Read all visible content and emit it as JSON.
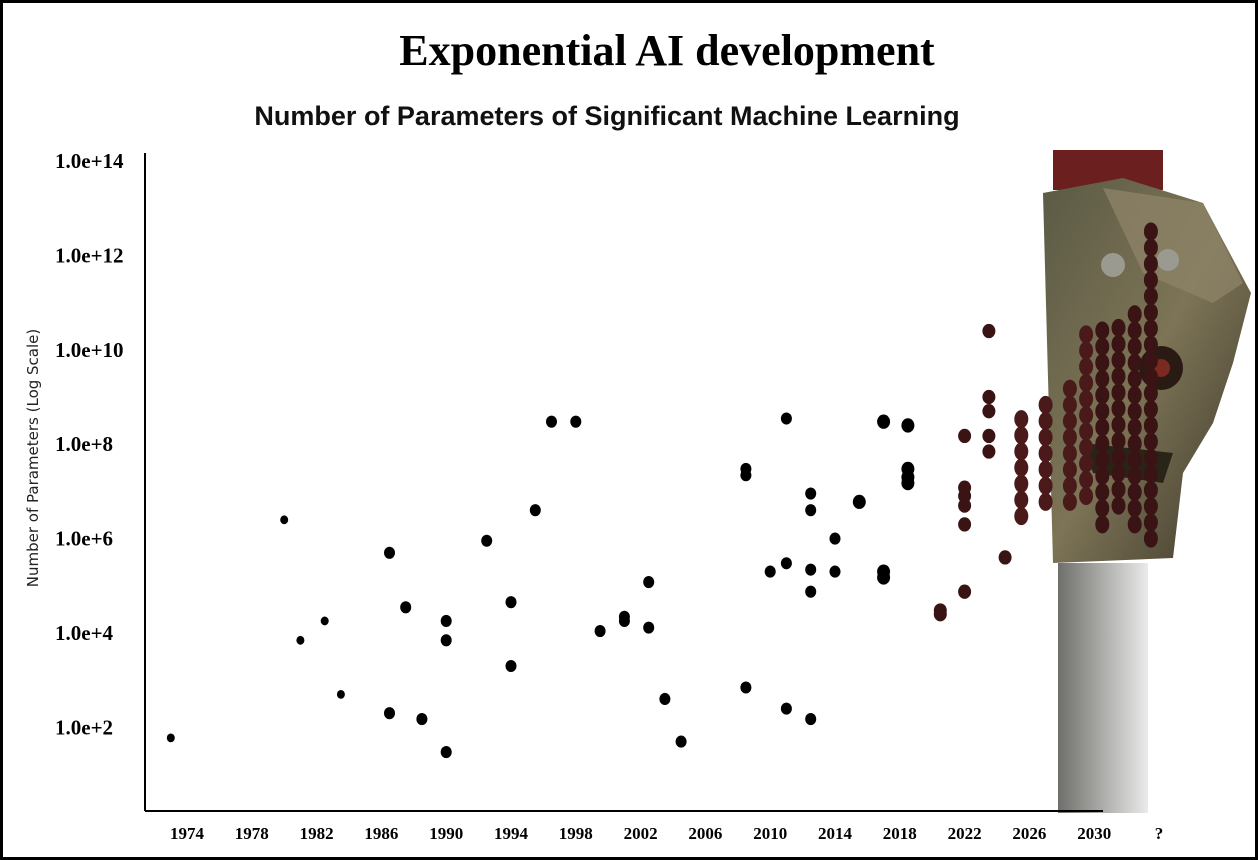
{
  "title": "Exponential AI development",
  "chart_data": {
    "type": "scatter",
    "title": "Number of Parameters of Significant Machine Learning",
    "xlabel": "",
    "ylabel": "Number of Parameters (Log Scale)",
    "y_scale": "log",
    "xlim": [
      1972,
      2034
    ],
    "ylim": [
      10,
      100000000000000.0
    ],
    "x_ticks": [
      "1974",
      "1978",
      "1982",
      "1986",
      "1990",
      "1994",
      "1998",
      "2002",
      "2006",
      "2010",
      "2014",
      "2018",
      "2022",
      "2026",
      "2030",
      "?"
    ],
    "y_ticks": [
      "1.0e+14",
      "1.0e+12",
      "1.0e+10",
      "1.0e+8",
      "1.0e+6",
      "1.0e+4",
      "1.0e+2"
    ],
    "grid": false,
    "legend": "none",
    "marker_color": "#000000",
    "accent_color": "#3a1414",
    "points": [
      {
        "x": 1973.0,
        "y": 60
      },
      {
        "x": 1980.0,
        "y": 2500000.0
      },
      {
        "x": 1981.0,
        "y": 7000
      },
      {
        "x": 1982.5,
        "y": 18000
      },
      {
        "x": 1983.5,
        "y": 500
      },
      {
        "x": 1986.5,
        "y": 500000.0
      },
      {
        "x": 1986.5,
        "y": 200
      },
      {
        "x": 1987.5,
        "y": 35000
      },
      {
        "x": 1988.5,
        "y": 150
      },
      {
        "x": 1990.0,
        "y": 18000
      },
      {
        "x": 1990.0,
        "y": 7000
      },
      {
        "x": 1990.0,
        "y": 30
      },
      {
        "x": 1992.5,
        "y": 900000.0
      },
      {
        "x": 1994.0,
        "y": 45000
      },
      {
        "x": 1994.0,
        "y": 2000
      },
      {
        "x": 1995.5,
        "y": 4000000.0
      },
      {
        "x": 1996.5,
        "y": 300000000.0
      },
      {
        "x": 1998.0,
        "y": 300000000.0
      },
      {
        "x": 1999.5,
        "y": 11000
      },
      {
        "x": 2001.0,
        "y": 22000
      },
      {
        "x": 2001.0,
        "y": 18000
      },
      {
        "x": 2002.5,
        "y": 13000
      },
      {
        "x": 2002.5,
        "y": 120000.0
      },
      {
        "x": 2003.5,
        "y": 400
      },
      {
        "x": 2004.5,
        "y": 50
      },
      {
        "x": 2008.5,
        "y": 30000000.0
      },
      {
        "x": 2008.5,
        "y": 22000000.0
      },
      {
        "x": 2008.5,
        "y": 700
      },
      {
        "x": 2010.0,
        "y": 200000.0
      },
      {
        "x": 2011.0,
        "y": 350000000.0
      },
      {
        "x": 2011.0,
        "y": 300000.0
      },
      {
        "x": 2011.0,
        "y": 250
      },
      {
        "x": 2012.5,
        "y": 9000000.0
      },
      {
        "x": 2012.5,
        "y": 4000000.0
      },
      {
        "x": 2012.5,
        "y": 220000.0
      },
      {
        "x": 2012.5,
        "y": 75000
      },
      {
        "x": 2012.5,
        "y": 150
      },
      {
        "x": 2014.0,
        "y": 200000.0
      },
      {
        "x": 2014.0,
        "y": 1000000.0
      },
      {
        "x": 2015.5,
        "y": 6000000.0
      },
      {
        "x": 2017.0,
        "y": 300000000.0
      },
      {
        "x": 2017.0,
        "y": 200000.0
      },
      {
        "x": 2017.0,
        "y": 150000.0
      },
      {
        "x": 2018.5,
        "y": 250000000.0
      },
      {
        "x": 2018.5,
        "y": 30000000.0
      },
      {
        "x": 2018.5,
        "y": 20000000.0
      },
      {
        "x": 2018.5,
        "y": 15000000.0
      },
      {
        "x": 2020.5,
        "y": 25000.0
      },
      {
        "x": 2020.5,
        "y": 30000.0
      },
      {
        "x": 2022.0,
        "y": 150000000.0
      },
      {
        "x": 2022.0,
        "y": 12000000.0
      },
      {
        "x": 2022.0,
        "y": 8000000.0
      },
      {
        "x": 2022.0,
        "y": 5000000.0
      },
      {
        "x": 2022.0,
        "y": 2000000.0
      },
      {
        "x": 2022.0,
        "y": 75000
      },
      {
        "x": 2023.5,
        "y": 500000000.0
      },
      {
        "x": 2023.5,
        "y": 1000000000.0
      },
      {
        "x": 2023.5,
        "y": 150000000.0
      },
      {
        "x": 2023.5,
        "y": 70000000.0
      },
      {
        "x": 2023.5,
        "y": 25000000000.0
      },
      {
        "x": 2024.5,
        "y": 400000.0
      }
    ],
    "dense_columns": [
      {
        "x": 2025.5,
        "y_from": 3000000.0,
        "y_to": 400000000.0,
        "step": 2.2,
        "color": "#4a1a1a"
      },
      {
        "x": 2027.0,
        "y_from": 6000000.0,
        "y_to": 800000000.0,
        "step": 2.2,
        "color": "#4a1a1a"
      },
      {
        "x": 2028.5,
        "y_from": 6000000.0,
        "y_to": 2000000000.0,
        "step": 2.2,
        "color": "#4a1a1a"
      },
      {
        "x": 2029.5,
        "y_from": 8000000.0,
        "y_to": 30000000000.0,
        "step": 2.2,
        "color": "#4a1a1a"
      },
      {
        "x": 2030.5,
        "y_from": 2000000.0,
        "y_to": 30000000000.0,
        "step": 2.2,
        "color": "#3a1414"
      },
      {
        "x": 2031.5,
        "y_from": 5000000.0,
        "y_to": 50000000000.0,
        "step": 2.2,
        "color": "#3a1414"
      },
      {
        "x": 2032.5,
        "y_from": 2000000.0,
        "y_to": 100000000000.0,
        "step": 2.2,
        "color": "#3a1414"
      },
      {
        "x": 2033.5,
        "y_from": 1000000.0,
        "y_to": 5000000000000.0,
        "step": 2.2,
        "color": "#3a1414"
      }
    ]
  }
}
